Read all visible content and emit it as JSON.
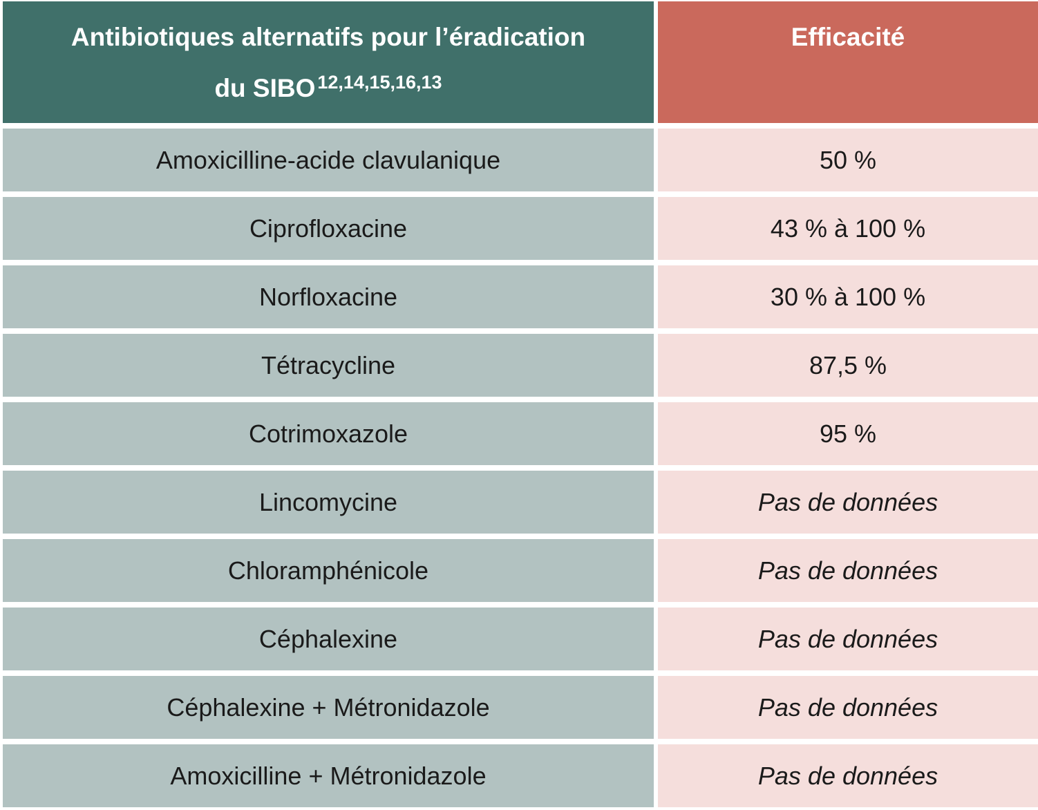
{
  "table": {
    "header": {
      "title_line1": "Antibiotiques alternatifs pour l’éradication",
      "title_line2": "du SIBO",
      "title_superscript": "12,14,15,16,13",
      "efficacy_label": "Efficacité"
    },
    "rows": [
      {
        "antibiotic": "Amoxicilline-acide clavulanique",
        "efficacy": "50 %"
      },
      {
        "antibiotic": "Ciprofloxacine",
        "efficacy": "43 % à 100 %"
      },
      {
        "antibiotic": "Norfloxacine",
        "efficacy": "30 % à 100 %"
      },
      {
        "antibiotic": "Tétracycline",
        "efficacy": "87,5 %"
      },
      {
        "antibiotic": "Cotrimoxazole",
        "efficacy": "95 %"
      },
      {
        "antibiotic": "Lincomycine",
        "efficacy": "Pas de données"
      },
      {
        "antibiotic": "Chloramphénicole",
        "efficacy": "Pas de données"
      },
      {
        "antibiotic": "Céphalexine",
        "efficacy": "Pas de données"
      },
      {
        "antibiotic": "Céphalexine + Métronidazole",
        "efficacy": "Pas de données"
      },
      {
        "antibiotic": "Amoxicilline + Métronidazole",
        "efficacy": "Pas de données"
      }
    ]
  },
  "colors": {
    "header_left_bg": "#40706A",
    "header_right_bg": "#CA695C",
    "row_left_bg": "#B2C2C1",
    "row_right_bg": "#F5DEDC",
    "header_text": "#FFFFFF",
    "body_text": "#1A1A1A",
    "gutter": "#FFFFFF"
  }
}
